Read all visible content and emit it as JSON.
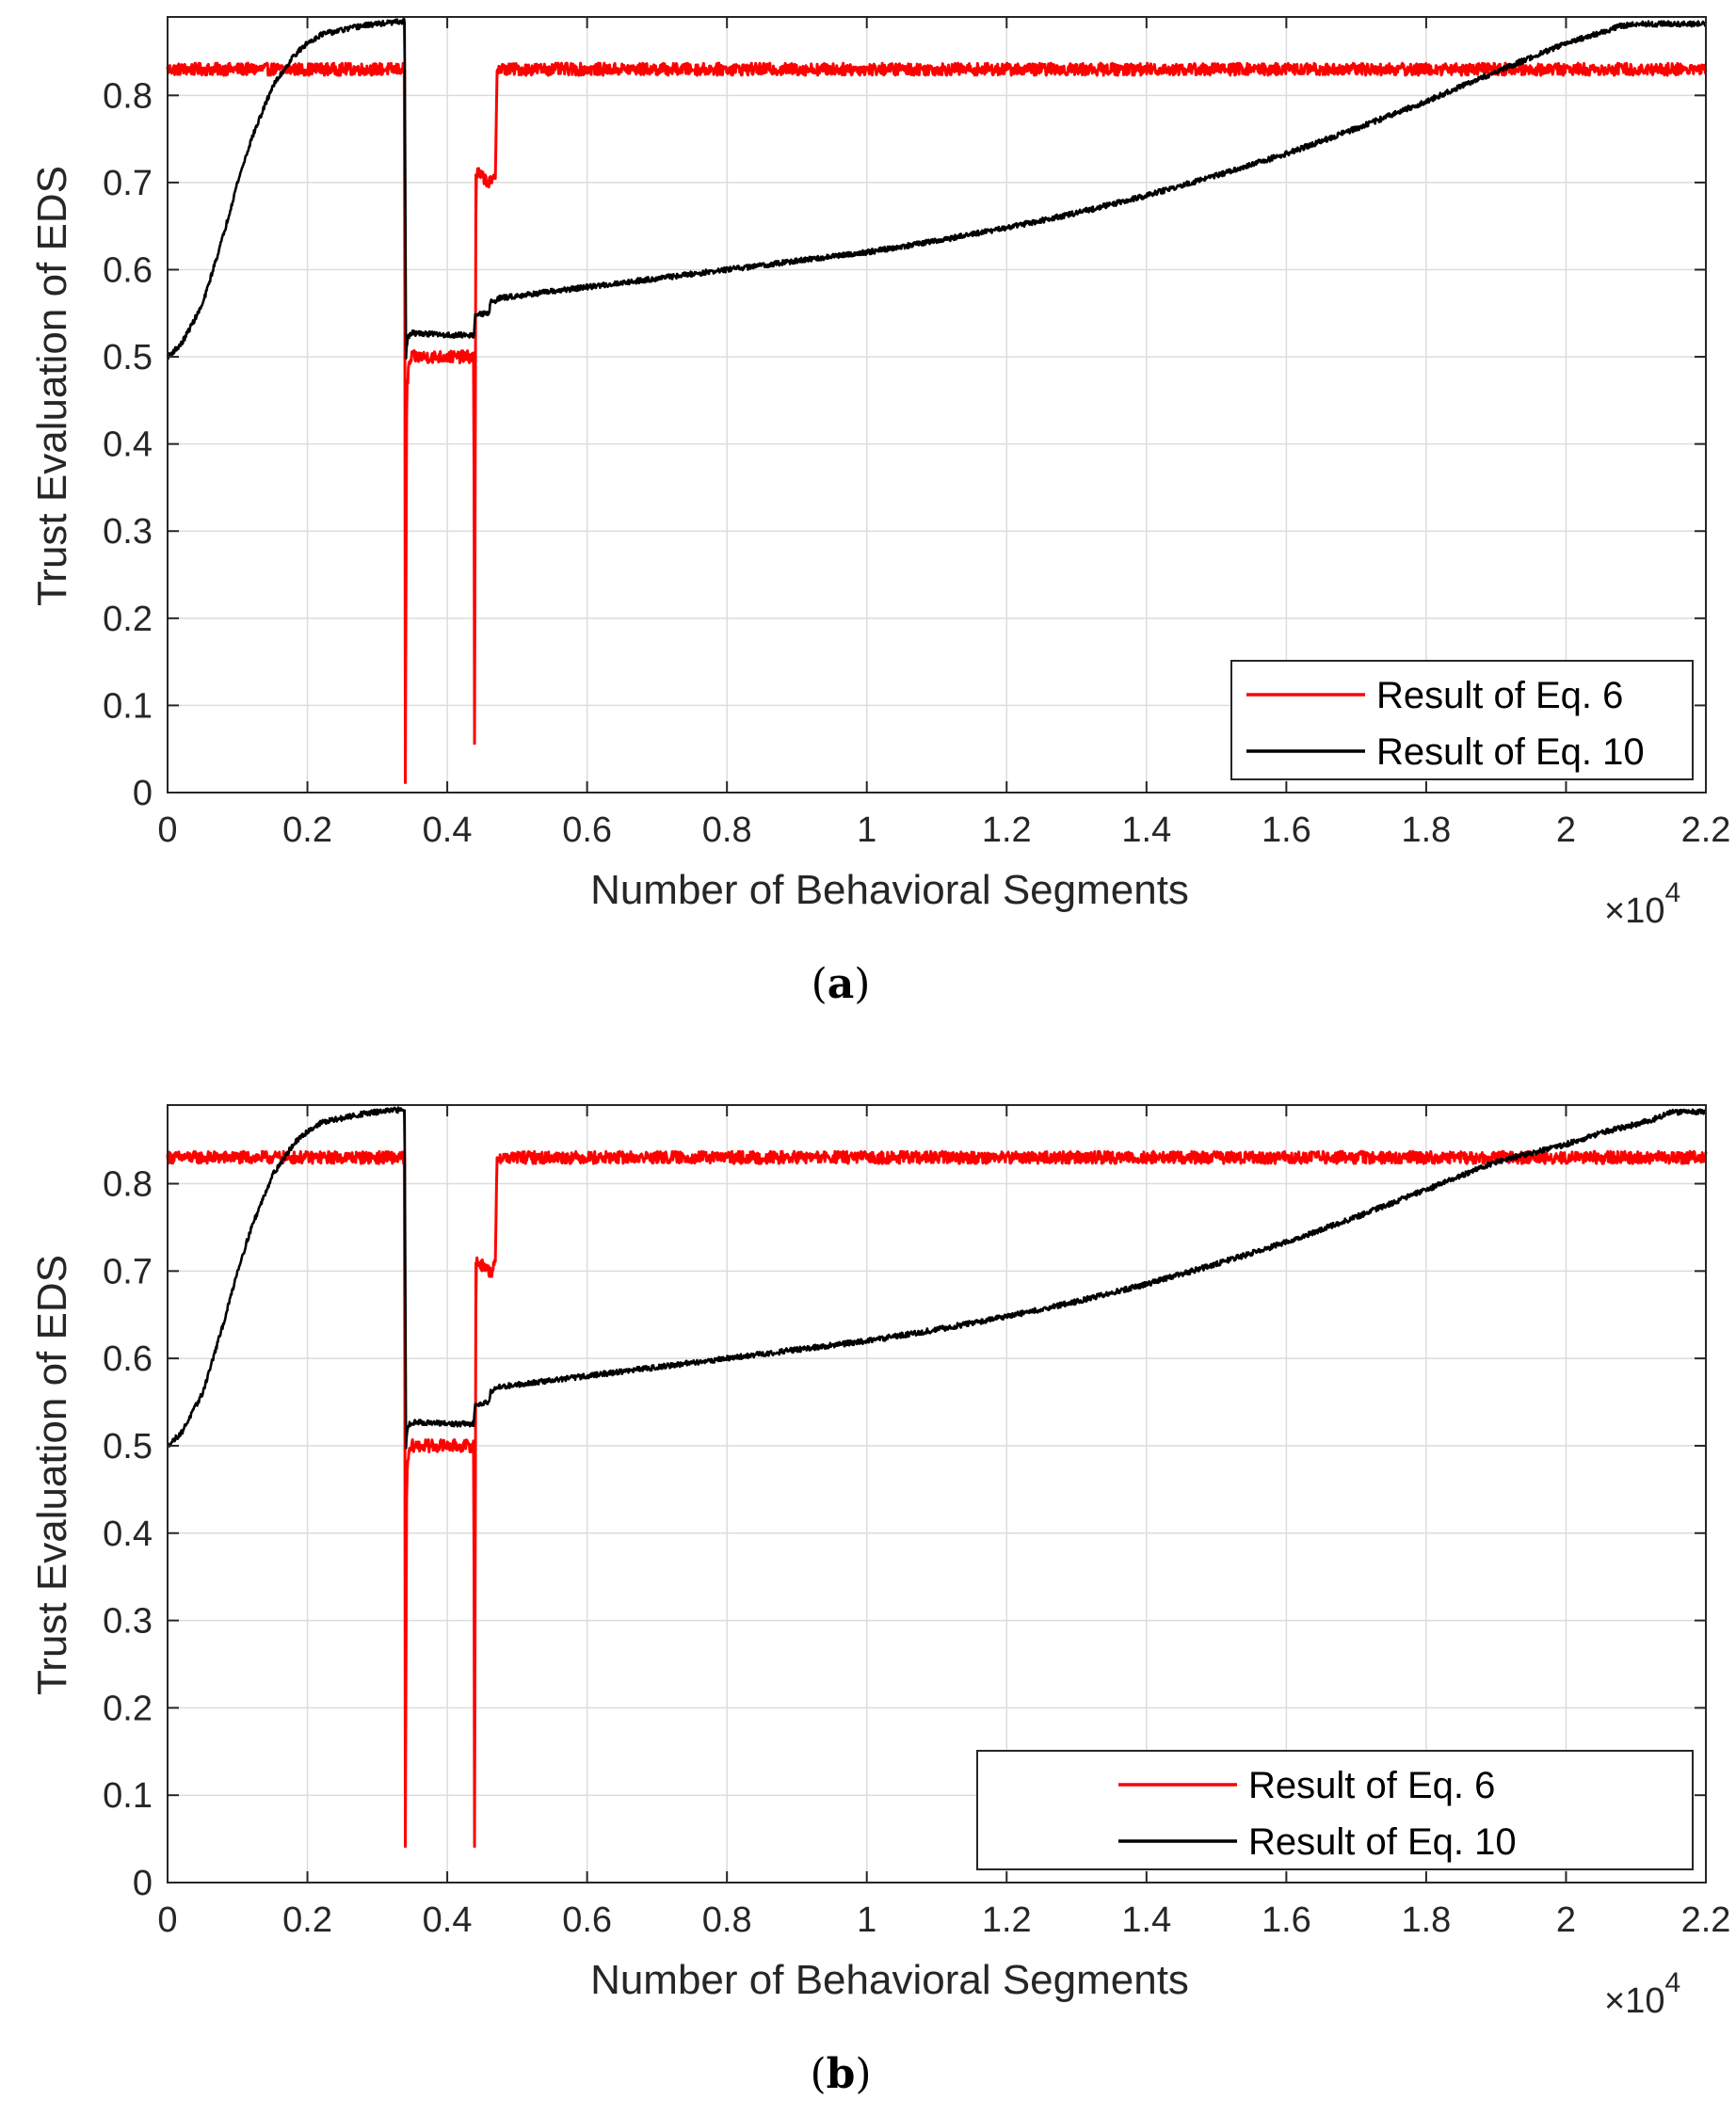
{
  "chart_data": [
    {
      "type": "line",
      "panel": "a",
      "caption_open": "(",
      "caption_letter": "a",
      "caption_close": ")",
      "xlabel": "Number of Behavioral Segments",
      "ylabel": "Trust Evaluation of EDS",
      "x_multiplier_prefix": "×10",
      "x_multiplier_exponent": "4",
      "xlim": [
        0,
        2.2
      ],
      "ylim": [
        0,
        0.89
      ],
      "xticks": [
        0,
        0.2,
        0.4,
        0.6,
        0.8,
        1,
        1.2,
        1.4,
        1.6,
        1.8,
        2,
        2.2
      ],
      "xtick_labels": [
        "0",
        "0.2",
        "0.4",
        "0.6",
        "0.8",
        "1",
        "1.2",
        "1.4",
        "1.6",
        "1.8",
        "2",
        "2.2"
      ],
      "yticks": [
        0,
        0.1,
        0.2,
        0.3,
        0.4,
        0.5,
        0.6,
        0.7,
        0.8
      ],
      "ytick_labels": [
        "0",
        "0.1",
        "0.2",
        "0.3",
        "0.4",
        "0.5",
        "0.6",
        "0.7",
        "0.8"
      ],
      "grid": true,
      "legend_position": "bottom-right",
      "series": [
        {
          "name": "Result of Eq. 6",
          "color": "#ff0000",
          "noise": 0.007,
          "x": [
            0,
            0.339,
            0.34,
            0.342,
            0.345,
            0.35,
            0.36,
            0.38,
            0.4,
            0.42,
            0.438,
            0.439,
            0.441,
            0.445,
            0.46,
            0.465,
            0.469,
            0.471,
            2.2
          ],
          "y": [
            0.83,
            0.83,
            0.01,
            0.46,
            0.49,
            0.5,
            0.5,
            0.5,
            0.5,
            0.5,
            0.5,
            0.055,
            0.71,
            0.71,
            0.7,
            0.7,
            0.71,
            0.83,
            0.83
          ]
        },
        {
          "name": "Result of Eq. 10",
          "color": "#000000",
          "noise": 0.003,
          "x": [
            0,
            0.02,
            0.05,
            0.08,
            0.1,
            0.12,
            0.15,
            0.18,
            0.2,
            0.22,
            0.25,
            0.28,
            0.3,
            0.339,
            0.341,
            0.343,
            0.346,
            0.35,
            0.36,
            0.38,
            0.4,
            0.42,
            0.438,
            0.44,
            0.46,
            0.462,
            0.47,
            0.472,
            0.5,
            0.6,
            0.7,
            0.8,
            0.9,
            1.0,
            1.1,
            1.2,
            1.3,
            1.4,
            1.5,
            1.6,
            1.7,
            1.8,
            1.9,
            2.0,
            2.05,
            2.08,
            2.1,
            2.15,
            2.2
          ],
          "y": [
            0.5,
            0.515,
            0.56,
            0.64,
            0.7,
            0.75,
            0.81,
            0.845,
            0.86,
            0.87,
            0.875,
            0.88,
            0.882,
            0.885,
            0.5,
            0.52,
            0.525,
            0.527,
            0.527,
            0.526,
            0.525,
            0.525,
            0.525,
            0.548,
            0.55,
            0.563,
            0.565,
            0.567,
            0.57,
            0.58,
            0.59,
            0.6,
            0.61,
            0.62,
            0.633,
            0.648,
            0.665,
            0.685,
            0.708,
            0.733,
            0.762,
            0.793,
            0.827,
            0.86,
            0.872,
            0.88,
            0.882,
            0.882,
            0.882
          ]
        }
      ]
    },
    {
      "type": "line",
      "panel": "b",
      "caption_open": "(",
      "caption_letter": "b",
      "caption_close": ")",
      "xlabel": "Number of Behavioral Segments",
      "ylabel": "Trust Evaluation of EDS",
      "x_multiplier_prefix": "×10",
      "x_multiplier_exponent": "4",
      "xlim": [
        0,
        2.2
      ],
      "ylim": [
        0,
        0.89
      ],
      "xticks": [
        0,
        0.2,
        0.4,
        0.6,
        0.8,
        1,
        1.2,
        1.4,
        1.6,
        1.8,
        2,
        2.2
      ],
      "xtick_labels": [
        "0",
        "0.2",
        "0.4",
        "0.6",
        "0.8",
        "1",
        "1.2",
        "1.4",
        "1.6",
        "1.8",
        "2",
        "2.2"
      ],
      "yticks": [
        0,
        0.1,
        0.2,
        0.3,
        0.4,
        0.5,
        0.6,
        0.7,
        0.8
      ],
      "ytick_labels": [
        "0",
        "0.1",
        "0.2",
        "0.3",
        "0.4",
        "0.5",
        "0.6",
        "0.7",
        "0.8"
      ],
      "grid": true,
      "legend_position": "bottom-right",
      "series": [
        {
          "name": "Result of Eq. 6",
          "color": "#ff0000",
          "noise": 0.007,
          "x": [
            0,
            0.339,
            0.34,
            0.342,
            0.345,
            0.35,
            0.36,
            0.38,
            0.4,
            0.42,
            0.438,
            0.439,
            0.441,
            0.445,
            0.46,
            0.465,
            0.469,
            0.471,
            2.2
          ],
          "y": [
            0.83,
            0.83,
            0.04,
            0.47,
            0.49,
            0.5,
            0.5,
            0.5,
            0.5,
            0.5,
            0.5,
            0.04,
            0.71,
            0.71,
            0.7,
            0.7,
            0.71,
            0.83,
            0.83
          ]
        },
        {
          "name": "Result of Eq. 10",
          "color": "#000000",
          "noise": 0.003,
          "x": [
            0,
            0.02,
            0.05,
            0.08,
            0.1,
            0.12,
            0.15,
            0.18,
            0.2,
            0.22,
            0.25,
            0.28,
            0.3,
            0.339,
            0.341,
            0.343,
            0.346,
            0.35,
            0.36,
            0.38,
            0.4,
            0.42,
            0.438,
            0.44,
            0.46,
            0.462,
            0.47,
            0.472,
            0.5,
            0.6,
            0.7,
            0.8,
            0.9,
            1.0,
            1.1,
            1.2,
            1.3,
            1.4,
            1.5,
            1.6,
            1.7,
            1.8,
            1.9,
            2.0,
            2.05,
            2.1,
            2.13,
            2.15,
            2.2
          ],
          "y": [
            0.5,
            0.515,
            0.56,
            0.64,
            0.7,
            0.75,
            0.81,
            0.845,
            0.86,
            0.87,
            0.875,
            0.88,
            0.882,
            0.885,
            0.5,
            0.52,
            0.525,
            0.527,
            0.527,
            0.526,
            0.525,
            0.525,
            0.525,
            0.548,
            0.55,
            0.563,
            0.565,
            0.567,
            0.57,
            0.58,
            0.59,
            0.6,
            0.61,
            0.62,
            0.633,
            0.648,
            0.665,
            0.685,
            0.708,
            0.733,
            0.762,
            0.793,
            0.825,
            0.845,
            0.858,
            0.868,
            0.875,
            0.882,
            0.882
          ]
        }
      ]
    }
  ]
}
